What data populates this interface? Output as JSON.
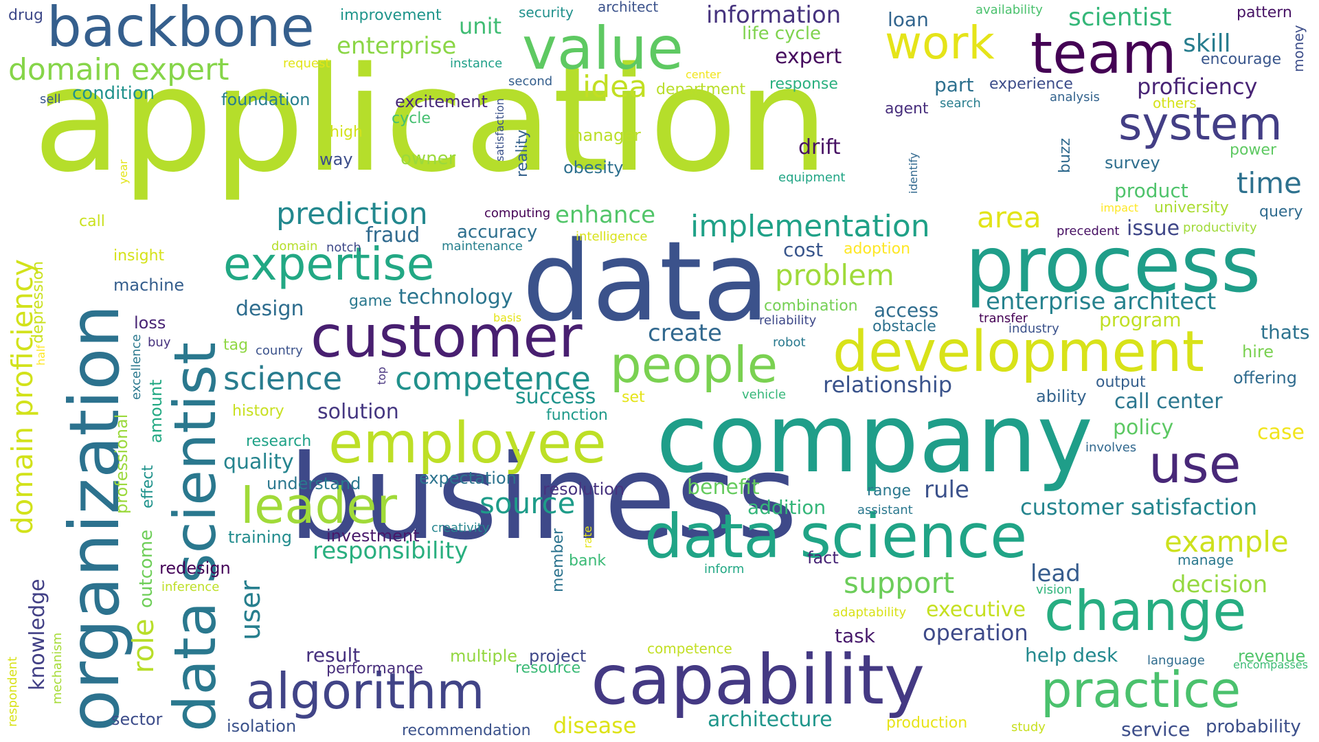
{
  "words": [
    {
      "text": "application",
      "color": "#b5de2b"
    },
    {
      "text": "business",
      "color": "#3e4989"
    },
    {
      "text": "company",
      "color": "#1f9e89"
    },
    {
      "text": "data",
      "color": "#3b528b"
    },
    {
      "text": "process",
      "color": "#1f9e89"
    },
    {
      "text": "capability",
      "color": "#443983"
    },
    {
      "text": "organization",
      "color": "#2c728e"
    },
    {
      "text": "data scientist",
      "color": "#2a788e"
    },
    {
      "text": "customer",
      "color": "#481f70"
    },
    {
      "text": "data science",
      "color": "#20a486"
    },
    {
      "text": "employee",
      "color": "#bddf26"
    },
    {
      "text": "development",
      "color": "#d8e219"
    },
    {
      "text": "value",
      "color": "#5ec962"
    },
    {
      "text": "backbone",
      "color": "#355f8d"
    },
    {
      "text": "team",
      "color": "#440154"
    },
    {
      "text": "change",
      "color": "#27ad81"
    },
    {
      "text": "algorithm",
      "color": "#414487"
    },
    {
      "text": "practice",
      "color": "#4ac16d"
    },
    {
      "text": "people",
      "color": "#7ad151"
    },
    {
      "text": "expertise",
      "color": "#22a884"
    },
    {
      "text": "leader",
      "color": "#a0da39"
    },
    {
      "text": "use",
      "color": "#482878"
    },
    {
      "text": "system",
      "color": "#433e85"
    },
    {
      "text": "work",
      "color": "#e5e419"
    },
    {
      "text": "domain expert",
      "color": "#86d549"
    },
    {
      "text": "domain proficiency",
      "color": "#d2e21b"
    },
    {
      "text": "competence",
      "color": "#21918c"
    },
    {
      "text": "science",
      "color": "#287c8e"
    },
    {
      "text": "prediction",
      "color": "#23888e"
    },
    {
      "text": "implementation",
      "color": "#1fa187"
    },
    {
      "text": "enterprise architect",
      "color": "#26828e"
    },
    {
      "text": "customer satisfaction",
      "color": "#25858e"
    },
    {
      "text": "support",
      "color": "#6ccd5a"
    },
    {
      "text": "problem",
      "color": "#9fda3a"
    },
    {
      "text": "idea",
      "color": "#c2df23"
    },
    {
      "text": "time",
      "color": "#2d718e"
    },
    {
      "text": "example",
      "color": "#cde11d"
    },
    {
      "text": "source",
      "color": "#1e9c89"
    },
    {
      "text": "responsibility",
      "color": "#29af7f"
    },
    {
      "text": "area",
      "color": "#e2e418"
    },
    {
      "text": "enterprise",
      "color": "#8bd646"
    },
    {
      "text": "information",
      "color": "#46337e"
    },
    {
      "text": "proficiency",
      "color": "#482475"
    },
    {
      "text": "decision",
      "color": "#95d840"
    },
    {
      "text": "architecture",
      "color": "#1f968b"
    },
    {
      "text": "scientist",
      "color": "#35b779"
    },
    {
      "text": "skill",
      "color": "#287d8e"
    },
    {
      "text": "relationship",
      "color": "#3a538b"
    },
    {
      "text": "lead",
      "color": "#365c8d"
    },
    {
      "text": "role",
      "color": "#b8de29"
    },
    {
      "text": "user",
      "color": "#277f8e"
    },
    {
      "text": "create",
      "color": "#31688e"
    },
    {
      "text": "call center",
      "color": "#2a768e"
    },
    {
      "text": "operation",
      "color": "#3e4a89"
    },
    {
      "text": "rule",
      "color": "#3b518b"
    },
    {
      "text": "executive",
      "color": "#c5e021"
    },
    {
      "text": "success",
      "color": "#1f948c"
    },
    {
      "text": "solution",
      "color": "#453781"
    },
    {
      "text": "technology",
      "color": "#2b758e"
    },
    {
      "text": "design",
      "color": "#2e6d8e"
    },
    {
      "text": "enhance",
      "color": "#52c569"
    },
    {
      "text": "disease",
      "color": "#dde318"
    },
    {
      "text": "knowledge",
      "color": "#424086"
    },
    {
      "text": "quality",
      "color": "#25848e"
    },
    {
      "text": "benefit",
      "color": "#65cb5e"
    },
    {
      "text": "fraud",
      "color": "#306a8e"
    },
    {
      "text": "drift",
      "color": "#471164"
    },
    {
      "text": "expert",
      "color": "#460b5e"
    },
    {
      "text": "unit",
      "color": "#3fbc73"
    },
    {
      "text": "policy",
      "color": "#5cc863"
    },
    {
      "text": "case",
      "color": "#f1e51d"
    },
    {
      "text": "addition",
      "color": "#34b679"
    },
    {
      "text": "cost",
      "color": "#39568c"
    },
    {
      "text": "access",
      "color": "#2f6c8e"
    },
    {
      "text": "task",
      "color": "#481a6c"
    },
    {
      "text": "result",
      "color": "#46307e"
    },
    {
      "text": "help desk",
      "color": "#23898e"
    },
    {
      "text": "issue",
      "color": "#3f4788"
    },
    {
      "text": "part",
      "color": "#2d708e"
    },
    {
      "text": "program",
      "color": "#c0df25"
    },
    {
      "text": "thats",
      "color": "#2c728e"
    },
    {
      "text": "service",
      "color": "#3d4e8a"
    },
    {
      "text": "probability",
      "color": "#3c4f8a"
    },
    {
      "text": "product",
      "color": "#4ec36b"
    },
    {
      "text": "loan",
      "color": "#32658e"
    },
    {
      "text": "accuracy",
      "color": "#2e6f8e"
    },
    {
      "text": "excitement",
      "color": "#482979"
    },
    {
      "text": "project",
      "color": "#3f4889"
    },
    {
      "text": "owner",
      "color": "#9bd93c"
    },
    {
      "text": "ability",
      "color": "#33638d"
    },
    {
      "text": "amount",
      "color": "#23a983"
    },
    {
      "text": "condition",
      "color": "#20928c"
    },
    {
      "text": "foundation",
      "color": "#277e8e"
    },
    {
      "text": "improvement",
      "color": "#1f958b"
    },
    {
      "text": "life cycle",
      "color": "#7fd34e"
    },
    {
      "text": "multiple",
      "color": "#93d741"
    },
    {
      "text": "understand",
      "color": "#2a778e"
    },
    {
      "text": "training",
      "color": "#228c8d"
    },
    {
      "text": "investment",
      "color": "#48186a"
    },
    {
      "text": "redesign",
      "color": "#450559"
    },
    {
      "text": "resolution",
      "color": "#46327e"
    },
    {
      "text": "expectation",
      "color": "#2c738e"
    },
    {
      "text": "performance",
      "color": "#472d7b"
    },
    {
      "text": "recommendation",
      "color": "#3b528b"
    },
    {
      "text": "production",
      "color": "#e7e419"
    },
    {
      "text": "isolation",
      "color": "#3b528b"
    },
    {
      "text": "sector",
      "color": "#3d4d8a"
    },
    {
      "text": "fact",
      "color": "#482677"
    },
    {
      "text": "manager",
      "color": "#bade28"
    },
    {
      "text": "obesity",
      "color": "#2d708e"
    },
    {
      "text": "way",
      "color": "#3d4e8a"
    },
    {
      "text": "machine",
      "color": "#355e8d"
    },
    {
      "text": "loss",
      "color": "#482475"
    },
    {
      "text": "revenue",
      "color": "#50c46a"
    },
    {
      "text": "offering",
      "color": "#2f6b8e"
    },
    {
      "text": "hire",
      "color": "#7ad151"
    },
    {
      "text": "output",
      "color": "#355f8d"
    },
    {
      "text": "survey",
      "color": "#2e6e8e"
    },
    {
      "text": "query",
      "color": "#2f6b8e"
    },
    {
      "text": "pattern",
      "color": "#471365"
    },
    {
      "text": "encourage",
      "color": "#39568c"
    },
    {
      "text": "university",
      "color": "#aadc32"
    },
    {
      "text": "power",
      "color": "#5ec962"
    },
    {
      "text": "resource",
      "color": "#3aba76"
    },
    {
      "text": "function",
      "color": "#1f9a8a"
    },
    {
      "text": "research",
      "color": "#1fa287"
    },
    {
      "text": "history",
      "color": "#c8e020"
    },
    {
      "text": "insight",
      "color": "#d5e21a"
    },
    {
      "text": "call",
      "color": "#cae11f"
    },
    {
      "text": "high",
      "color": "#d2e21b"
    },
    {
      "text": "security",
      "color": "#21918c"
    },
    {
      "text": "architect",
      "color": "#3b528b"
    },
    {
      "text": "response",
      "color": "#2ab07f"
    },
    {
      "text": "department",
      "color": "#b8de29"
    },
    {
      "text": "game",
      "color": "#2a788e"
    },
    {
      "text": "range",
      "color": "#2a788e"
    },
    {
      "text": "drug",
      "color": "#3e4989"
    },
    {
      "text": "combination",
      "color": "#75d054"
    },
    {
      "text": "obstacle",
      "color": "#2d718e"
    },
    {
      "text": "adoption",
      "color": "#fde725"
    },
    {
      "text": "experience",
      "color": "#3d4d8a"
    },
    {
      "text": "agent",
      "color": "#472e7c"
    },
    {
      "text": "cycle",
      "color": "#44bf70"
    },
    {
      "text": "reality",
      "color": "#34618d"
    },
    {
      "text": "satisfaction",
      "color": "#3b528b"
    },
    {
      "text": "identify",
      "color": "#31688e"
    },
    {
      "text": "buzz",
      "color": "#306a8e"
    },
    {
      "text": "outcome",
      "color": "#6ece58"
    },
    {
      "text": "professional",
      "color": "#9bd93c"
    },
    {
      "text": "effect",
      "color": "#20938c"
    },
    {
      "text": "depression",
      "color": "#cae11f"
    },
    {
      "text": "member",
      "color": "#2c738e"
    },
    {
      "text": "money",
      "color": "#3d4e8a"
    },
    {
      "text": "mechanism",
      "color": "#a5db36"
    },
    {
      "text": "respondent",
      "color": "#d8e219"
    },
    {
      "text": "others",
      "color": "#d5e21a"
    },
    {
      "text": "analysis",
      "color": "#33638d"
    },
    {
      "text": "search",
      "color": "#287d8e"
    },
    {
      "text": "availability",
      "color": "#4ac16d"
    },
    {
      "text": "request",
      "color": "#e2e418"
    },
    {
      "text": "instance",
      "color": "#1fa088"
    },
    {
      "text": "center",
      "color": "#f1e51d"
    },
    {
      "text": "second",
      "color": "#355f8d"
    },
    {
      "text": "sell",
      "color": "#39568c"
    },
    {
      "text": "year",
      "color": "#e2e418"
    },
    {
      "text": "computing",
      "color": "#440154"
    },
    {
      "text": "intelligence",
      "color": "#d8e219"
    },
    {
      "text": "equipment",
      "color": "#21a585"
    },
    {
      "text": "impact",
      "color": "#fde725"
    },
    {
      "text": "productivity",
      "color": "#a0da39"
    },
    {
      "text": "precedent",
      "color": "#471063"
    },
    {
      "text": "domain",
      "color": "#b5de2b"
    },
    {
      "text": "notch",
      "color": "#3e4989"
    },
    {
      "text": "maintenance",
      "color": "#27808e"
    },
    {
      "text": "basis",
      "color": "#e5e419"
    },
    {
      "text": "reliability",
      "color": "#3e4989"
    },
    {
      "text": "transfer",
      "color": "#440154"
    },
    {
      "text": "industry",
      "color": "#3b528b"
    },
    {
      "text": "robot",
      "color": "#29798e"
    },
    {
      "text": "vehicle",
      "color": "#35b779"
    },
    {
      "text": "set",
      "color": "#e5e419"
    },
    {
      "text": "tag",
      "color": "#8fd744"
    },
    {
      "text": "country",
      "color": "#3b528b"
    },
    {
      "text": "buy",
      "color": "#46327e"
    },
    {
      "text": "top",
      "color": "#46327e"
    },
    {
      "text": "excellence",
      "color": "#2a788e"
    },
    {
      "text": "half",
      "color": "#fde725"
    },
    {
      "text": "creativity",
      "color": "#25858e"
    },
    {
      "text": "rate",
      "color": "#e5e419"
    },
    {
      "text": "assistant",
      "color": "#2a788e"
    },
    {
      "text": "involves",
      "color": "#31688e"
    },
    {
      "text": "bank",
      "color": "#3aba76"
    },
    {
      "text": "inform",
      "color": "#22a884"
    },
    {
      "text": "manage",
      "color": "#2a788e"
    },
    {
      "text": "vision",
      "color": "#2fb47c"
    },
    {
      "text": "inference",
      "color": "#bddf26"
    },
    {
      "text": "adaptability",
      "color": "#d8e219"
    },
    {
      "text": "competence",
      "color": "#c2df23"
    },
    {
      "text": "language",
      "color": "#2f6c8e"
    },
    {
      "text": "encompasses",
      "color": "#3bbb75"
    },
    {
      "text": "study",
      "color": "#c8e020"
    }
  ]
}
